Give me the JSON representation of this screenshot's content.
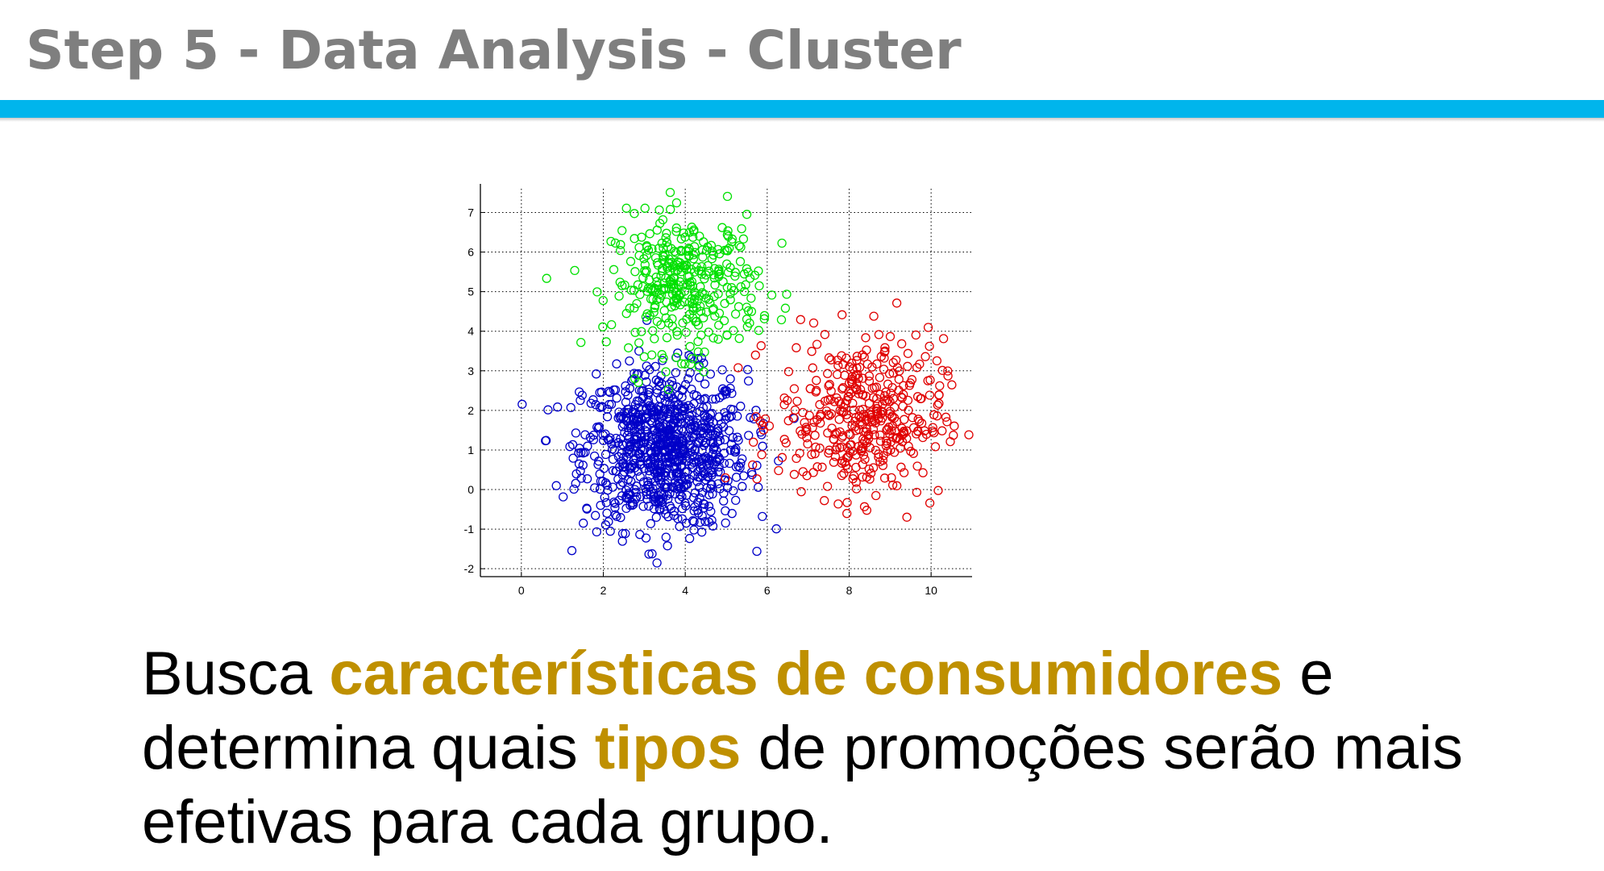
{
  "slide": {
    "title": "Step 5 - Data Analysis - Cluster",
    "accent_color": "#00b5ec",
    "title_color": "#7f7f7f"
  },
  "body": {
    "text_1": "Busca ",
    "highlight_1": "características de consumidores",
    "text_2": " e determina quais ",
    "highlight_2": "tipos",
    "text_3": " de promoções serão mais efetivas para cada grupo.",
    "highlight_color": "#bf9000"
  },
  "chart_data": {
    "type": "scatter",
    "xlim": [
      -1,
      11
    ],
    "ylim": [
      -2.2,
      7.6
    ],
    "xticks": [
      0,
      2,
      4,
      6,
      8,
      10
    ],
    "yticks": [
      -2,
      -1,
      0,
      1,
      2,
      3,
      4,
      5,
      6,
      7
    ],
    "grid": true,
    "grid_style": "dotted",
    "marker": "open-circle",
    "series": [
      {
        "color": "#0000c8",
        "center": [
          3.5,
          1.0
        ],
        "spread": [
          1.0,
          1.0
        ],
        "count": 900
      },
      {
        "color": "#00e000",
        "center": [
          4.0,
          5.2
        ],
        "spread": [
          0.9,
          0.85
        ],
        "count": 360
      },
      {
        "color": "#e00000",
        "center": [
          8.3,
          1.8
        ],
        "spread": [
          1.0,
          1.0
        ],
        "count": 420
      }
    ]
  }
}
